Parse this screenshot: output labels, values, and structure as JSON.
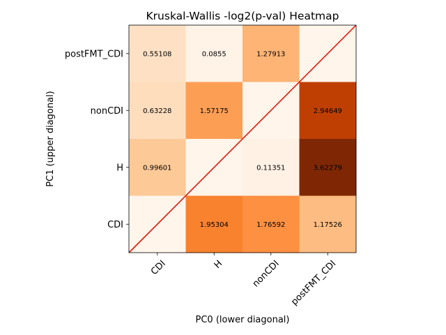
{
  "chart_data": {
    "type": "heatmap",
    "title": "Kruskal-Wallis -log2(p-val) Heatmap",
    "xlabel": "PC0 (lower diagonal)",
    "ylabel": "PC1 (upper diagonal)",
    "x_categories": [
      "CDI",
      "H",
      "nonCDI",
      "postFMT_CDI"
    ],
    "y_categories": [
      "CDI",
      "H",
      "nonCDI",
      "postFMT_CDI"
    ],
    "colormap": "Oranges",
    "value_range": [
      0,
      3.62279
    ],
    "diagonal_line_color": "#e41a0c",
    "rows": [
      {
        "y": "postFMT_CDI",
        "values": [
          0.55108,
          0.0855,
          1.27913,
          null
        ],
        "labels": [
          "0.55108",
          "0.0855",
          "1.27913",
          ""
        ]
      },
      {
        "y": "nonCDI",
        "values": [
          0.63228,
          1.57175,
          null,
          2.94649
        ],
        "labels": [
          "0.63228",
          "1.57175",
          "",
          "2.94649"
        ]
      },
      {
        "y": "H",
        "values": [
          0.99601,
          null,
          0.11351,
          3.62279
        ],
        "labels": [
          "0.99601",
          "",
          "0.11351",
          "3.62279"
        ]
      },
      {
        "y": "CDI",
        "values": [
          null,
          1.95304,
          1.76592,
          1.17526
        ],
        "labels": [
          "",
          "1.95304",
          "1.76592",
          "1.17526"
        ]
      }
    ]
  }
}
